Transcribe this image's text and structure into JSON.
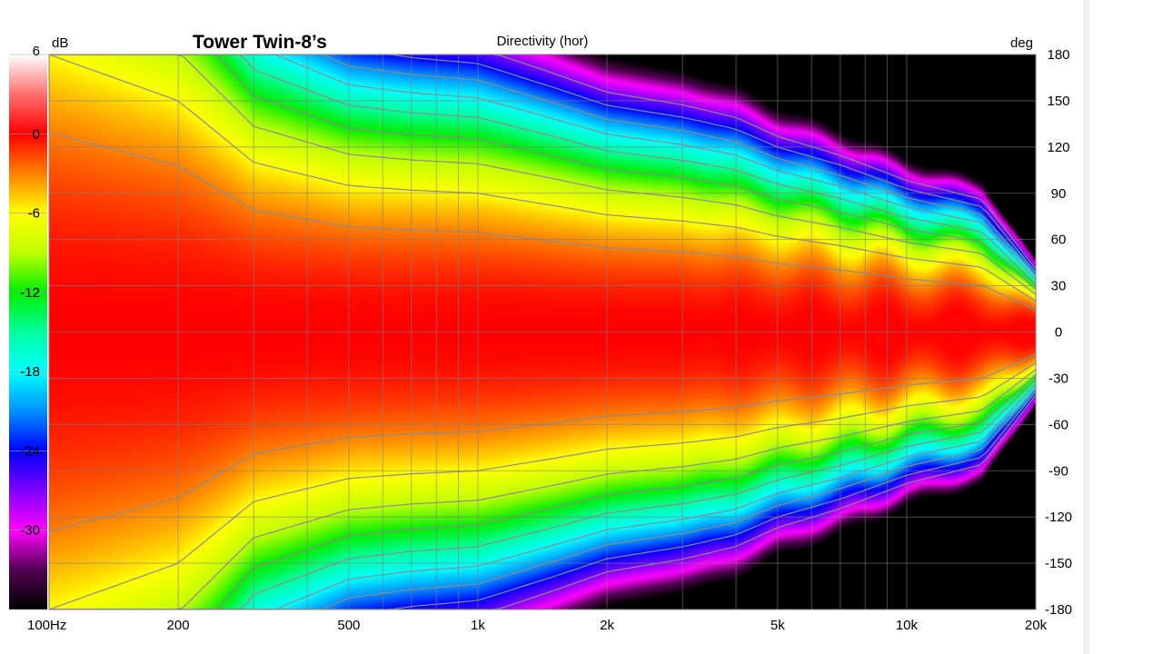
{
  "chart_data": {
    "type": "heatmap",
    "title": "Tower Twin-8’s",
    "subtitle": "Directivity (hor)",
    "x_axis": {
      "scale": "log",
      "range": [
        100,
        20000
      ],
      "ticks": [
        {
          "value": 100,
          "label": "100Hz"
        },
        {
          "value": 200,
          "label": "200"
        },
        {
          "value": 500,
          "label": "500"
        },
        {
          "value": 1000,
          "label": "1k"
        },
        {
          "value": 2000,
          "label": "2k"
        },
        {
          "value": 5000,
          "label": "5k"
        },
        {
          "value": 10000,
          "label": "10k"
        },
        {
          "value": 20000,
          "label": "20k"
        }
      ],
      "minor_ticks": [
        300,
        400,
        600,
        700,
        800,
        900,
        3000,
        4000,
        6000,
        7000,
        8000,
        9000
      ]
    },
    "y_axis": {
      "unit_label": "deg",
      "range": [
        -180,
        180
      ],
      "ticks": [
        180,
        150,
        120,
        90,
        60,
        30,
        0,
        -30,
        -60,
        -90,
        -120,
        -150,
        -180
      ]
    },
    "color_scale": {
      "unit_label": "dB",
      "range": [
        -36,
        6
      ],
      "ticks": [
        6,
        0,
        -6,
        -12,
        -18,
        -24,
        -30,
        -36
      ],
      "stops": [
        {
          "db": 6,
          "color": "#ffffff"
        },
        {
          "db": 3,
          "color": "#ff7070"
        },
        {
          "db": 0,
          "color": "#ff0000"
        },
        {
          "db": -3,
          "color": "#ff8000"
        },
        {
          "db": -6,
          "color": "#ffff00"
        },
        {
          "db": -9,
          "color": "#c0ff00"
        },
        {
          "db": -12,
          "color": "#00ee00"
        },
        {
          "db": -15,
          "color": "#00ffa0"
        },
        {
          "db": -18,
          "color": "#00ffff"
        },
        {
          "db": -21,
          "color": "#0090ff"
        },
        {
          "db": -24,
          "color": "#0000ff"
        },
        {
          "db": -27,
          "color": "#8000ff"
        },
        {
          "db": -30,
          "color": "#ff00ff"
        },
        {
          "db": -33,
          "color": "#500050"
        },
        {
          "db": -36,
          "color": "#000000"
        }
      ]
    },
    "contour_step_db": 3,
    "grid": true,
    "beamwidth_-6dB_deg": {
      "freqs": [
        100,
        200,
        300,
        500,
        700,
        1000,
        1500,
        2000,
        3000,
        4000,
        5000,
        7000,
        10000,
        15000,
        20000
      ],
      "half_angle": [
        180,
        150,
        110,
        95,
        92,
        90,
        82,
        76,
        72,
        68,
        62,
        56,
        48,
        42,
        20
      ]
    }
  }
}
